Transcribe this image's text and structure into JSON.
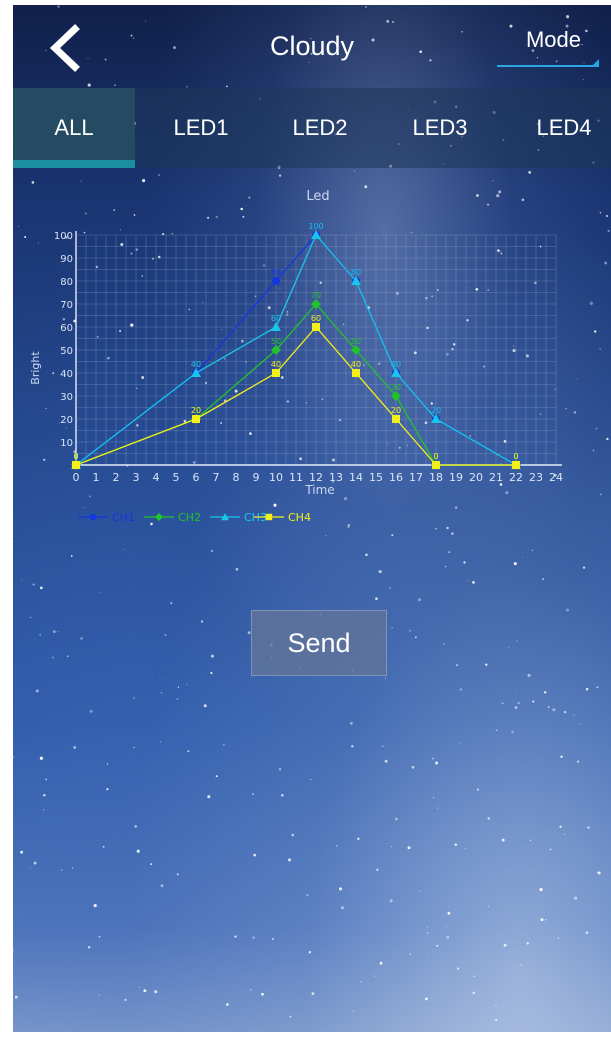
{
  "header": {
    "title": "Cloudy",
    "mode_label": "Mode",
    "back_icon": "chevron-left-icon"
  },
  "tabs": [
    {
      "label": "ALL",
      "active": true
    },
    {
      "label": "LED1",
      "active": false
    },
    {
      "label": "LED2",
      "active": false
    },
    {
      "label": "LED3",
      "active": false
    },
    {
      "label": "LED4",
      "active": false
    }
  ],
  "colors": {
    "accent": "#2aa7e0",
    "tab_indicator": "#1a8fa0",
    "grid": "#9fb6dd"
  },
  "chart_data": {
    "type": "line",
    "title": "Led",
    "xlabel": "Time",
    "ylabel": "Bright",
    "xlim": [
      0,
      24
    ],
    "ylim": [
      0,
      100
    ],
    "x_ticks": [
      "0",
      "1",
      "2",
      "3",
      "4",
      "5",
      "6",
      "7",
      "8",
      "9",
      "10",
      "11",
      "12",
      "13",
      "14",
      "15",
      "16",
      "17",
      "18",
      "19",
      "20",
      "21",
      "22",
      "23",
      "24"
    ],
    "y_ticks": [
      "10",
      "20",
      "30",
      "40",
      "50",
      "60",
      "70",
      "80",
      "90",
      "100"
    ],
    "grid": true,
    "legend_position": "bottom-left",
    "series": [
      {
        "name": "CH1",
        "color": "#1436e0",
        "marker": "circle",
        "points": [
          [
            0,
            0
          ],
          [
            6,
            40
          ],
          [
            10,
            80
          ],
          [
            12,
            100
          ],
          [
            14,
            80
          ],
          [
            16,
            40
          ],
          [
            18,
            20
          ],
          [
            22,
            0
          ]
        ],
        "labels": [
          "0",
          "40",
          "80",
          "100",
          "80",
          "40",
          "20",
          "0"
        ]
      },
      {
        "name": "CH2",
        "color": "#22c22a",
        "marker": "diamond",
        "points": [
          [
            0,
            0
          ],
          [
            6,
            20
          ],
          [
            10,
            50
          ],
          [
            12,
            70
          ],
          [
            14,
            50
          ],
          [
            16,
            30
          ],
          [
            18,
            0
          ],
          [
            22,
            0
          ]
        ],
        "labels": [
          "0",
          "20",
          "50",
          "70",
          "50",
          "30",
          "0",
          "0"
        ]
      },
      {
        "name": "CH3",
        "color": "#19c6ea",
        "marker": "triangle",
        "points": [
          [
            0,
            0
          ],
          [
            6,
            40
          ],
          [
            10,
            60
          ],
          [
            12,
            100
          ],
          [
            14,
            80
          ],
          [
            16,
            40
          ],
          [
            18,
            20
          ],
          [
            22,
            0
          ]
        ],
        "labels": [
          "0",
          "40",
          "60",
          "100",
          "80",
          "40",
          "20",
          "0"
        ]
      },
      {
        "name": "CH4",
        "color": "#f3ef1a",
        "marker": "square",
        "points": [
          [
            0,
            0
          ],
          [
            6,
            20
          ],
          [
            10,
            40
          ],
          [
            12,
            60
          ],
          [
            14,
            40
          ],
          [
            16,
            20
          ],
          [
            18,
            0
          ],
          [
            22,
            0
          ]
        ],
        "labels": [
          "0",
          "20",
          "40",
          "60",
          "40",
          "20",
          "0",
          "0"
        ]
      }
    ]
  },
  "send_button": {
    "label": "Send"
  }
}
